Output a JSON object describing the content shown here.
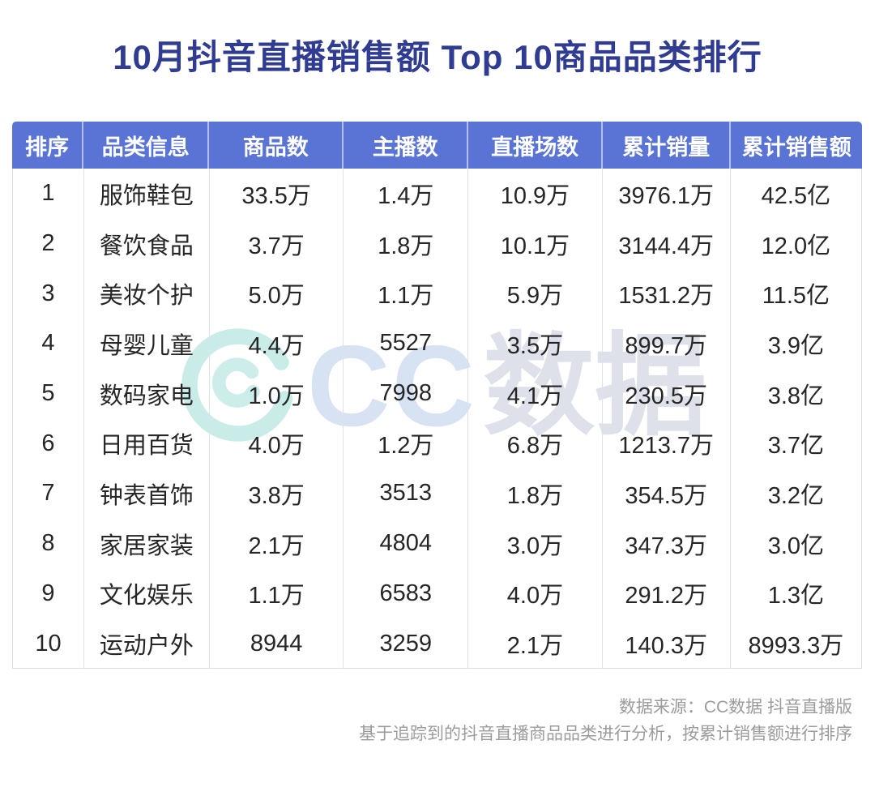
{
  "title": "10月抖音直播销售额 Top 10商品品类排行",
  "chart_data": {
    "type": "table",
    "title": "10月抖音直播销售额 Top 10商品品类排行",
    "columns": [
      "排序",
      "品类信息",
      "商品数",
      "主播数",
      "直播场数",
      "累计销量",
      "累计销售额"
    ],
    "rows": [
      [
        "1",
        "服饰鞋包",
        "33.5万",
        "1.4万",
        "10.9万",
        "3976.1万",
        "42.5亿"
      ],
      [
        "2",
        "餐饮食品",
        "3.7万",
        "1.8万",
        "10.1万",
        "3144.4万",
        "12.0亿"
      ],
      [
        "3",
        "美妆个护",
        "5.0万",
        "1.1万",
        "5.9万",
        "1531.2万",
        "11.5亿"
      ],
      [
        "4",
        "母婴儿童",
        "4.4万",
        "5527",
        "3.5万",
        "899.7万",
        "3.9亿"
      ],
      [
        "5",
        "数码家电",
        "1.0万",
        "7998",
        "4.1万",
        "230.5万",
        "3.8亿"
      ],
      [
        "6",
        "日用百货",
        "4.0万",
        "1.2万",
        "6.8万",
        "1213.7万",
        "3.7亿"
      ],
      [
        "7",
        "钟表首饰",
        "3.8万",
        "3513",
        "1.8万",
        "354.5万",
        "3.2亿"
      ],
      [
        "8",
        "家居家装",
        "2.1万",
        "4804",
        "3.0万",
        "347.3万",
        "3.0亿"
      ],
      [
        "9",
        "文化娱乐",
        "1.1万",
        "6583",
        "4.0万",
        "291.2万",
        "1.3亿"
      ],
      [
        "10",
        "运动户外",
        "8944",
        "3259",
        "2.1万",
        "140.3万",
        "8993.3万"
      ]
    ],
    "sorted_by": "累计销售额",
    "legend_position": "none",
    "grid": "vertical-dividers-only"
  },
  "watermark": {
    "cc": "CC",
    "suffix": "数据",
    "logo": "cc-data-eye-logo"
  },
  "footer": {
    "source": "数据来源：CC数据 抖音直播版",
    "note": "基于追踪到的抖音直播商品品类进行分析，按累计销售额进行排序"
  },
  "colors": {
    "header_bg": "#5a74d6",
    "header_text": "#ffffff",
    "title": "#2f3c92",
    "body_text": "#262626",
    "divider": "#dde1ea",
    "footer_text": "#9c9c9c",
    "watermark_blue": "#d7e3f2",
    "watermark_gray": "#dee1ea",
    "watermark_cyan": "#c9ece9"
  }
}
